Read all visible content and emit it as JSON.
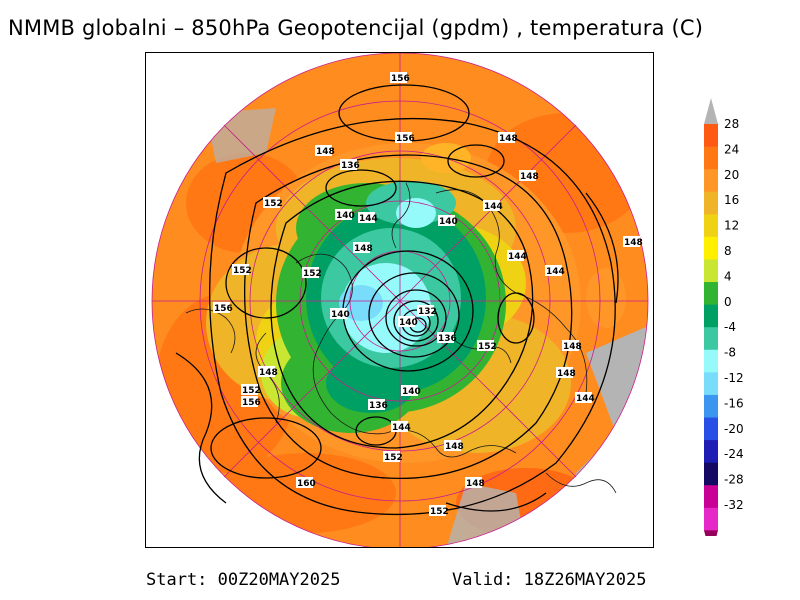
{
  "header": {
    "title": "NMMB globalni – 850hPa Geopotencijal (gpdm) , temperatura (C)"
  },
  "colorbar": {
    "labels": [
      "28",
      "24",
      "20",
      "16",
      "12",
      "8",
      "4",
      "0",
      "-4",
      "-8",
      "-12",
      "-16",
      "-20",
      "-24",
      "-28",
      "-32"
    ],
    "colors": [
      "#b4b4b4",
      "#ff5a14",
      "#ff7814",
      "#ff9628",
      "#f0b428",
      "#f0d214",
      "#fff000",
      "#c8e632",
      "#32b432",
      "#00a064",
      "#3cc8a0",
      "#96fafa",
      "#78dcfa",
      "#3c96f0",
      "#2850e6",
      "#1e1eb4",
      "#140a64",
      "#c80096",
      "#e628c8",
      "#96005a"
    ]
  },
  "map": {
    "background_color": "#ff8c1e",
    "contour_labels": [
      {
        "text": "156"
      },
      {
        "text": "156"
      },
      {
        "text": "148"
      },
      {
        "text": "148"
      },
      {
        "text": "136"
      },
      {
        "text": "148"
      },
      {
        "text": "152"
      },
      {
        "text": "140"
      },
      {
        "text": "144"
      },
      {
        "text": "140"
      },
      {
        "text": "144"
      },
      {
        "text": "148"
      },
      {
        "text": "148"
      },
      {
        "text": "152"
      },
      {
        "text": "152"
      },
      {
        "text": "144"
      },
      {
        "text": "144"
      },
      {
        "text": "156"
      },
      {
        "text": "140"
      },
      {
        "text": "132"
      },
      {
        "text": "140"
      },
      {
        "text": "136"
      },
      {
        "text": "152"
      },
      {
        "text": "148"
      },
      {
        "text": "148"
      },
      {
        "text": "148"
      },
      {
        "text": "152"
      },
      {
        "text": "156"
      },
      {
        "text": "140"
      },
      {
        "text": "136"
      },
      {
        "text": "144"
      },
      {
        "text": "144"
      },
      {
        "text": "148"
      },
      {
        "text": "152"
      },
      {
        "text": "160"
      },
      {
        "text": "148"
      },
      {
        "text": "152"
      }
    ]
  },
  "footer": {
    "start": "Start: 00Z20MAY2025",
    "valid": "Valid: 18Z26MAY2025"
  }
}
